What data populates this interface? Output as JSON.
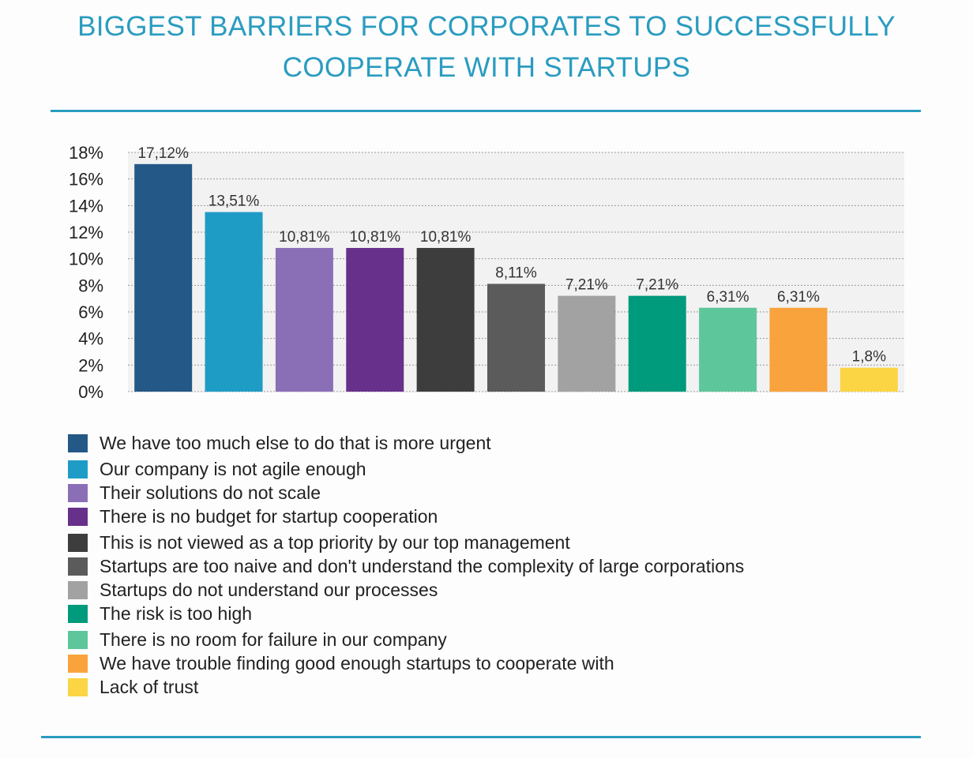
{
  "page": {
    "title_line1": "BIGGEST BARRIERS FOR CORPORATES TO SUCCESSFULLY",
    "title_line2": "COOPERATE WITH STARTUPS",
    "accent_color": "#2a9cc0"
  },
  "chart_data": {
    "type": "bar",
    "ylim": [
      0,
      18
    ],
    "yticks": [
      "0%",
      "2%",
      "4%",
      "6%",
      "8%",
      "10%",
      "12%",
      "14%",
      "16%",
      "18%"
    ],
    "grid": true,
    "legend_position": "bottom",
    "categories": [
      "We have too much else to do that is more urgent",
      "Our company is not agile enough",
      "Their solutions do not scale",
      "There is no budget for startup cooperation",
      "This is not viewed as a top priority by our top management",
      "Startups are too naive and don't understand the complexity of large corporations",
      "Startups do not understand our processes",
      "The risk is too high",
      "There is no room for failure in our company",
      "We have trouble finding good enough startups to cooperate with",
      "Lack of trust"
    ],
    "values": [
      17.12,
      13.51,
      10.81,
      10.81,
      10.81,
      8.11,
      7.21,
      7.21,
      6.31,
      6.31,
      1.8
    ],
    "data_labels": [
      "17,12%",
      "13,51%",
      "10,81%",
      "10,81%",
      "10,81%",
      "8,11%",
      "7,21%",
      "7,21%",
      "6,31%",
      "6,31%",
      "1,8%"
    ],
    "colors": [
      "#245886",
      "#1f9cc6",
      "#8b6fb6",
      "#67308a",
      "#3d3d3d",
      "#5b5b5b",
      "#a2a2a2",
      "#009a7c",
      "#5ec69b",
      "#f9a33d",
      "#fbd544"
    ]
  }
}
